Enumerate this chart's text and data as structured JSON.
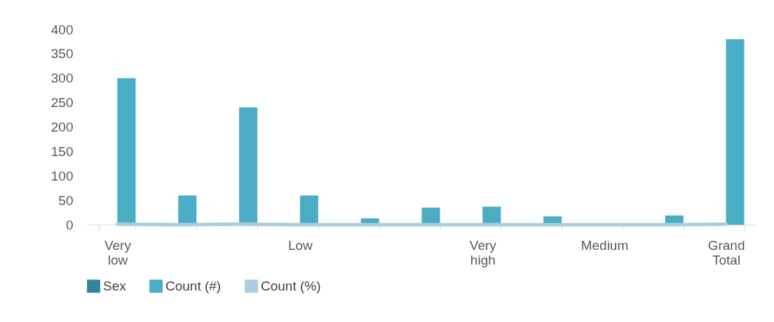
{
  "chart_data": {
    "type": "bar",
    "categories": [
      "Very low",
      null,
      null,
      "Low",
      null,
      null,
      "Very high",
      null,
      "Medium",
      null,
      "Grand Total"
    ],
    "series": [
      {
        "name": "Sex",
        "color": "#31859c",
        "values": [
          null,
          null,
          null,
          null,
          null,
          null,
          null,
          null,
          null,
          null,
          null
        ]
      },
      {
        "name": "Count (#)",
        "color": "#4bacc6",
        "values": [
          300,
          60,
          240,
          60,
          13,
          35,
          37,
          17,
          0,
          19,
          380
        ]
      },
      {
        "name": "Count (%)",
        "color": "#a9cfdc",
        "type": "line",
        "values": [
          1,
          0,
          1,
          0,
          0,
          0,
          0,
          0,
          0,
          0,
          1
        ]
      }
    ],
    "ylim": [
      0,
      400
    ],
    "yticks": [
      0,
      50,
      100,
      150,
      200,
      250,
      300,
      350,
      400
    ],
    "grid": false,
    "legend": "bottom"
  }
}
